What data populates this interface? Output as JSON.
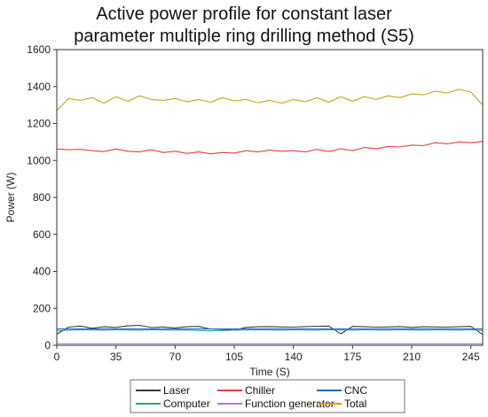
{
  "chart_data": {
    "type": "line",
    "title_lines": [
      "Active power profile for constant laser",
      "parameter multiple ring drilling method (S5)"
    ],
    "xlabel": "Time (S)",
    "ylabel": "Power (W)",
    "xlim": [
      0,
      252
    ],
    "ylim": [
      0,
      1600
    ],
    "xticks": [
      0,
      35,
      70,
      105,
      140,
      175,
      210,
      245
    ],
    "yticks": [
      0,
      200,
      400,
      600,
      800,
      1000,
      1200,
      1400,
      1600
    ],
    "grid": false,
    "legend_position": "bottom",
    "x": [
      0,
      7,
      14,
      21,
      28,
      35,
      42,
      49,
      56,
      63,
      70,
      77,
      84,
      91,
      98,
      105,
      112,
      119,
      126,
      133,
      140,
      147,
      154,
      161,
      168,
      175,
      182,
      189,
      196,
      203,
      210,
      217,
      224,
      231,
      238,
      245,
      252
    ],
    "series": [
      {
        "name": "Laser",
        "color": "#3a3a3a",
        "values": [
          60,
          98,
          104,
          92,
          100,
          97,
          105,
          108,
          96,
          99,
          94,
          100,
          102,
          88,
          86,
          82,
          97,
          100,
          101,
          99,
          98,
          101,
          103,
          104,
          62,
          102,
          100,
          98,
          99,
          101,
          97,
          100,
          99,
          98,
          100,
          102,
          58
        ]
      },
      {
        "name": "Chiller",
        "color": "#e8403f",
        "values": [
          1062,
          1058,
          1060,
          1053,
          1048,
          1062,
          1050,
          1046,
          1058,
          1043,
          1050,
          1038,
          1046,
          1036,
          1043,
          1040,
          1053,
          1046,
          1056,
          1050,
          1053,
          1046,
          1060,
          1048,
          1063,
          1053,
          1070,
          1063,
          1076,
          1073,
          1083,
          1080,
          1096,
          1090,
          1100,
          1096,
          1103
        ]
      },
      {
        "name": "CNC",
        "color": "#1f66c7",
        "values": [
          88,
          88,
          88,
          88,
          88,
          88,
          88,
          88,
          88,
          88,
          88,
          88,
          88,
          88,
          88,
          88,
          88,
          88,
          88,
          88,
          88,
          88,
          88,
          88,
          88,
          88,
          88,
          88,
          88,
          88,
          88,
          88,
          88,
          88,
          88,
          88,
          88
        ]
      },
      {
        "name": "Computer",
        "color": "#2aa77f",
        "values": [
          78,
          82,
          84,
          83,
          82,
          84,
          83,
          82,
          84,
          83,
          82,
          83,
          80,
          78,
          80,
          82,
          83,
          84,
          83,
          82,
          84,
          83,
          82,
          84,
          83,
          82,
          84,
          83,
          82,
          84,
          83,
          82,
          84,
          83,
          82,
          84,
          80
        ]
      },
      {
        "name": "Function generator",
        "color": "#a37fd0",
        "values": [
          8,
          8,
          8,
          8,
          8,
          8,
          8,
          8,
          8,
          8,
          8,
          8,
          8,
          8,
          8,
          8,
          8,
          8,
          8,
          8,
          8,
          8,
          8,
          8,
          8,
          8,
          8,
          8,
          8,
          8,
          8,
          8,
          8,
          8,
          8,
          8,
          8
        ]
      },
      {
        "name": "Total",
        "color": "#c8a21c",
        "values": [
          1270,
          1335,
          1325,
          1340,
          1310,
          1345,
          1320,
          1350,
          1330,
          1325,
          1335,
          1318,
          1330,
          1315,
          1340,
          1322,
          1330,
          1312,
          1325,
          1310,
          1330,
          1318,
          1340,
          1315,
          1345,
          1320,
          1345,
          1330,
          1350,
          1340,
          1360,
          1355,
          1375,
          1365,
          1385,
          1370,
          1300
        ]
      }
    ]
  }
}
